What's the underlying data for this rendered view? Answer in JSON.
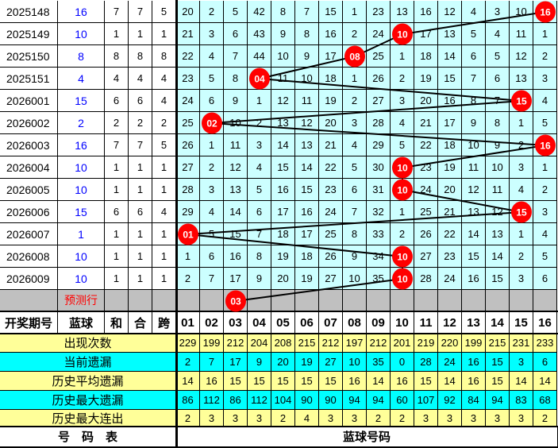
{
  "colors": {
    "grid": "#ccffff",
    "predict": "#c0c0c0",
    "stat_yellow": "#ffff99",
    "stat_cyan": "#00ffff",
    "ball": "#ff0000",
    "blue_text": "#0000ff"
  },
  "rows": [
    {
      "period": "2025148",
      "blue": "16",
      "he": "7",
      "hewei": "7",
      "kua": "5",
      "ball": 16,
      "cells": [
        20,
        2,
        5,
        42,
        8,
        7,
        15,
        1,
        23,
        13,
        16,
        12,
        4,
        3,
        10,
        null
      ]
    },
    {
      "period": "2025149",
      "blue": "10",
      "he": "1",
      "hewei": "1",
      "kua": "1",
      "ball": 10,
      "cells": [
        21,
        3,
        6,
        43,
        9,
        8,
        16,
        2,
        24,
        null,
        17,
        13,
        5,
        4,
        11,
        1
      ]
    },
    {
      "period": "2025150",
      "blue": "8",
      "he": "8",
      "hewei": "8",
      "kua": "8",
      "ball": 8,
      "cells": [
        22,
        4,
        7,
        44,
        10,
        9,
        17,
        null,
        25,
        1,
        18,
        14,
        6,
        5,
        12,
        2
      ]
    },
    {
      "period": "2025151",
      "blue": "4",
      "he": "4",
      "hewei": "4",
      "kua": "4",
      "ball": 4,
      "cells": [
        23,
        5,
        8,
        null,
        11,
        10,
        18,
        1,
        26,
        2,
        19,
        15,
        7,
        6,
        13,
        3
      ]
    },
    {
      "period": "2026001",
      "blue": "15",
      "he": "6",
      "hewei": "6",
      "kua": "4",
      "ball": 15,
      "cells": [
        24,
        6,
        9,
        1,
        12,
        11,
        19,
        2,
        27,
        3,
        20,
        16,
        8,
        7,
        null,
        4
      ]
    },
    {
      "period": "2026002",
      "blue": "2",
      "he": "2",
      "hewei": "2",
      "kua": "2",
      "ball": 2,
      "cells": [
        25,
        null,
        10,
        2,
        13,
        12,
        20,
        3,
        28,
        4,
        21,
        17,
        9,
        8,
        1,
        5
      ]
    },
    {
      "period": "2026003",
      "blue": "16",
      "he": "7",
      "hewei": "7",
      "kua": "5",
      "ball": 16,
      "cells": [
        26,
        1,
        11,
        3,
        14,
        13,
        21,
        4,
        29,
        5,
        22,
        18,
        10,
        9,
        2,
        null
      ]
    },
    {
      "period": "2026004",
      "blue": "10",
      "he": "1",
      "hewei": "1",
      "kua": "1",
      "ball": 10,
      "cells": [
        27,
        2,
        12,
        4,
        15,
        14,
        22,
        5,
        30,
        null,
        23,
        19,
        11,
        10,
        3,
        1
      ]
    },
    {
      "period": "2026005",
      "blue": "10",
      "he": "1",
      "hewei": "1",
      "kua": "1",
      "ball": 10,
      "cells": [
        28,
        3,
        13,
        5,
        16,
        15,
        23,
        6,
        31,
        null,
        24,
        20,
        12,
        11,
        4,
        2
      ]
    },
    {
      "period": "2026006",
      "blue": "15",
      "he": "6",
      "hewei": "6",
      "kua": "4",
      "ball": 15,
      "cells": [
        29,
        4,
        14,
        6,
        17,
        16,
        24,
        7,
        32,
        1,
        25,
        21,
        13,
        12,
        null,
        3
      ]
    },
    {
      "period": "2026007",
      "blue": "1",
      "he": "1",
      "hewei": "1",
      "kua": "1",
      "ball": 1,
      "cells": [
        null,
        5,
        15,
        7,
        18,
        17,
        25,
        8,
        33,
        2,
        26,
        22,
        14,
        13,
        1,
        4
      ]
    },
    {
      "period": "2026008",
      "blue": "10",
      "he": "1",
      "hewei": "1",
      "kua": "1",
      "ball": 10,
      "cells": [
        1,
        6,
        16,
        8,
        19,
        18,
        26,
        9,
        34,
        null,
        27,
        23,
        15,
        14,
        2,
        5
      ]
    },
    {
      "period": "2026009",
      "blue": "10",
      "he": "1",
      "hewei": "1",
      "kua": "1",
      "ball": 10,
      "cells": [
        2,
        7,
        17,
        9,
        20,
        19,
        27,
        10,
        35,
        null,
        28,
        24,
        16,
        15,
        3,
        6
      ]
    }
  ],
  "predict": {
    "label": "预测行",
    "ball": 3
  },
  "header": {
    "period": "开奖期号",
    "blue": "蓝球",
    "he": "和",
    "hewei": "合",
    "kua": "跨",
    "numbers": [
      "01",
      "02",
      "03",
      "04",
      "05",
      "06",
      "07",
      "08",
      "09",
      "10",
      "11",
      "12",
      "13",
      "14",
      "15",
      "16"
    ]
  },
  "stats": [
    {
      "label": "出现次数",
      "color": "yellow",
      "values": [
        229,
        199,
        212,
        204,
        208,
        215,
        212,
        197,
        212,
        201,
        219,
        220,
        199,
        215,
        231,
        233
      ]
    },
    {
      "label": "当前遗漏",
      "color": "cyan",
      "values": [
        2,
        7,
        17,
        9,
        20,
        19,
        27,
        10,
        35,
        0,
        28,
        24,
        16,
        15,
        3,
        6
      ]
    },
    {
      "label": "历史平均遗漏",
      "color": "yellow",
      "values": [
        14,
        16,
        15,
        15,
        15,
        15,
        15,
        16,
        14,
        16,
        15,
        14,
        16,
        15,
        14,
        14
      ]
    },
    {
      "label": "历史最大遗漏",
      "color": "cyan",
      "values": [
        86,
        112,
        86,
        112,
        104,
        90,
        90,
        94,
        94,
        60,
        107,
        92,
        84,
        94,
        83,
        68
      ]
    },
    {
      "label": "历史最大连出",
      "color": "yellow",
      "values": [
        2,
        3,
        3,
        3,
        2,
        4,
        3,
        3,
        2,
        2,
        3,
        3,
        3,
        3,
        3,
        2
      ]
    }
  ],
  "footer": {
    "left": "号　码　表",
    "right": "蓝球号码"
  }
}
